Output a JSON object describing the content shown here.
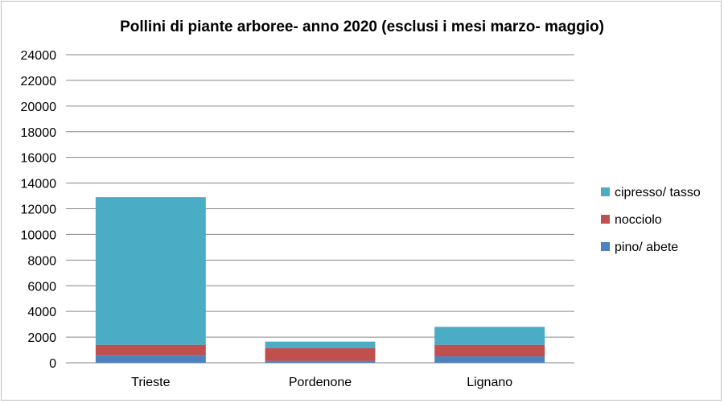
{
  "chart_data": {
    "type": "bar",
    "stacked": true,
    "title": "Pollini di piante arboree- anno 2020 (esclusi i mesi marzo- maggio)",
    "xlabel": "",
    "ylabel": "",
    "categories": [
      "Trieste",
      "Pordenone",
      "Lignano"
    ],
    "series": [
      {
        "name": "pino/ abete",
        "color": "#4f81bd",
        "values": [
          600,
          150,
          500
        ]
      },
      {
        "name": "nocciolo",
        "color": "#c0504d",
        "values": [
          800,
          1000,
          900
        ]
      },
      {
        "name": "cipresso/ tasso",
        "color": "#4bacc6",
        "values": [
          11500,
          500,
          1400
        ]
      }
    ],
    "ylim": [
      0,
      24000
    ],
    "yticks": [
      "0",
      "2000",
      "4000",
      "6000",
      "8000",
      "10000",
      "12000",
      "14000",
      "16000",
      "18000",
      "20000",
      "22000",
      "24000"
    ],
    "grid": true,
    "legend_position": "right"
  }
}
